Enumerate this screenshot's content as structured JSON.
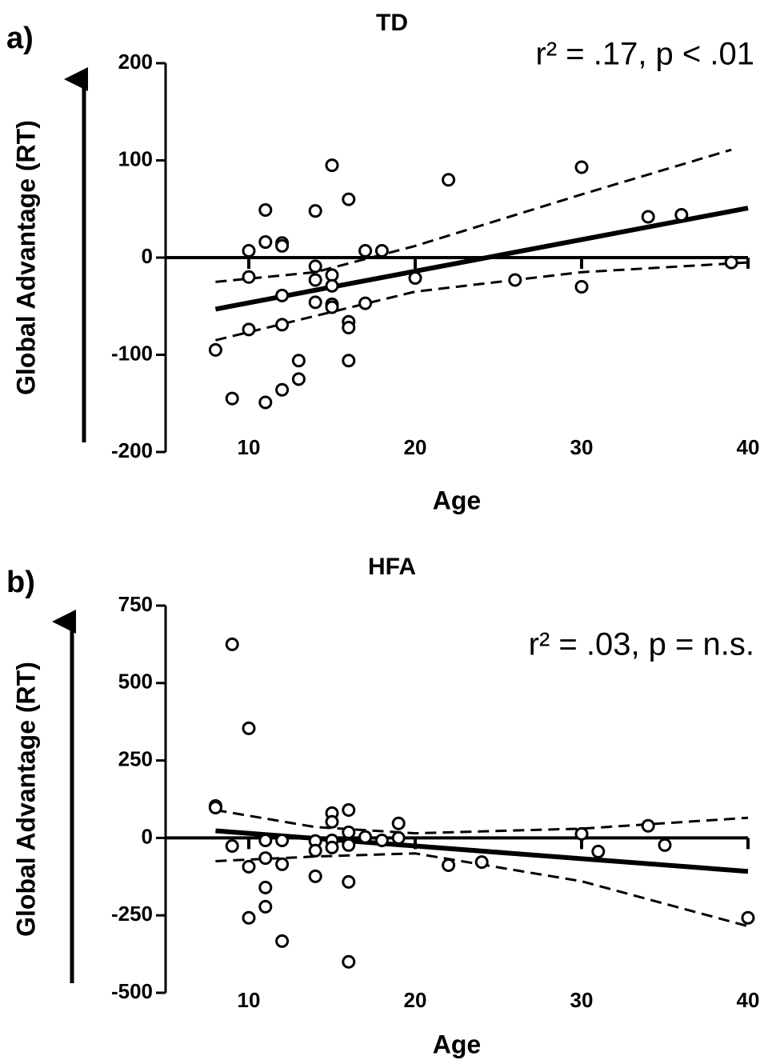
{
  "chart_data": [
    {
      "type": "scatter",
      "panel_label": "a)",
      "title": "TD",
      "annotation": "r² = .17, p < .01",
      "x_label": "Age",
      "y_label": "Global Advantage (RT)",
      "xlim": [
        5,
        40
      ],
      "xticks": [
        10,
        20,
        30,
        40
      ],
      "ylim": [
        -200,
        200
      ],
      "yticks": [
        -200,
        -100,
        0,
        100,
        200
      ],
      "x": [
        8,
        9,
        10,
        10,
        10,
        11,
        11,
        11,
        12,
        12,
        12,
        12,
        12,
        13,
        13,
        14,
        14,
        14,
        14,
        15,
        15,
        15,
        15,
        15,
        16,
        16,
        16,
        16,
        17,
        17,
        18,
        20,
        22,
        26,
        30,
        30,
        34,
        36,
        39
      ],
      "values": [
        -95,
        -145,
        7,
        -20,
        -74,
        49,
        16,
        -149,
        15,
        12,
        -39,
        -69,
        -136,
        -106,
        -125,
        48,
        -9,
        -23,
        -46,
        95,
        -18,
        -29,
        -48,
        -51,
        60,
        -66,
        -72,
        -106,
        7,
        -47,
        7,
        -21,
        80,
        -23,
        93,
        -30,
        42,
        44,
        -5
      ],
      "fit": {
        "x": [
          8,
          40
        ],
        "values": [
          -53,
          51
        ]
      },
      "ci_upper": {
        "x": [
          8,
          14,
          20,
          30,
          39
        ],
        "values": [
          -25,
          -15,
          12,
          65,
          111
        ]
      },
      "ci_lower": {
        "x": [
          8,
          14,
          20,
          30,
          40
        ],
        "values": [
          -85,
          -60,
          -35,
          -15,
          -5
        ]
      }
    },
    {
      "type": "scatter",
      "panel_label": "b)",
      "title": "HFA",
      "annotation": "r² = .03, p = n.s.",
      "x_label": "Age",
      "y_label": "Global Advantage (RT)",
      "xlim": [
        5,
        40
      ],
      "xticks": [
        10,
        20,
        30,
        40
      ],
      "ylim": [
        -500,
        750
      ],
      "yticks": [
        -500,
        -250,
        0,
        250,
        500,
        750
      ],
      "x": [
        8,
        8,
        9,
        9,
        10,
        10,
        10,
        11,
        11,
        11,
        11,
        12,
        12,
        12,
        14,
        14,
        14,
        15,
        15,
        15,
        15,
        16,
        16,
        16,
        16,
        16,
        17,
        18,
        19,
        19,
        22,
        24,
        30,
        31,
        34,
        35,
        40
      ],
      "values": [
        103,
        98,
        625,
        -26,
        354,
        -93,
        -258,
        -8,
        -65,
        -160,
        -222,
        -8,
        -85,
        -333,
        -10,
        -41,
        -124,
        80,
        52,
        -8,
        -31,
        90,
        18,
        -23,
        -142,
        -400,
        3,
        -8,
        47,
        0,
        -88,
        -78,
        13,
        -44,
        39,
        -23,
        -258
      ],
      "fit": {
        "x": [
          8,
          40
        ],
        "values": [
          23,
          -108
        ]
      },
      "ci_upper": {
        "x": [
          8,
          14,
          20,
          30,
          40
        ],
        "values": [
          90,
          35,
          15,
          30,
          65
        ]
      },
      "ci_lower": {
        "x": [
          8,
          14,
          20,
          30,
          40
        ],
        "values": [
          -75,
          -60,
          -50,
          -140,
          -285
        ]
      }
    }
  ]
}
